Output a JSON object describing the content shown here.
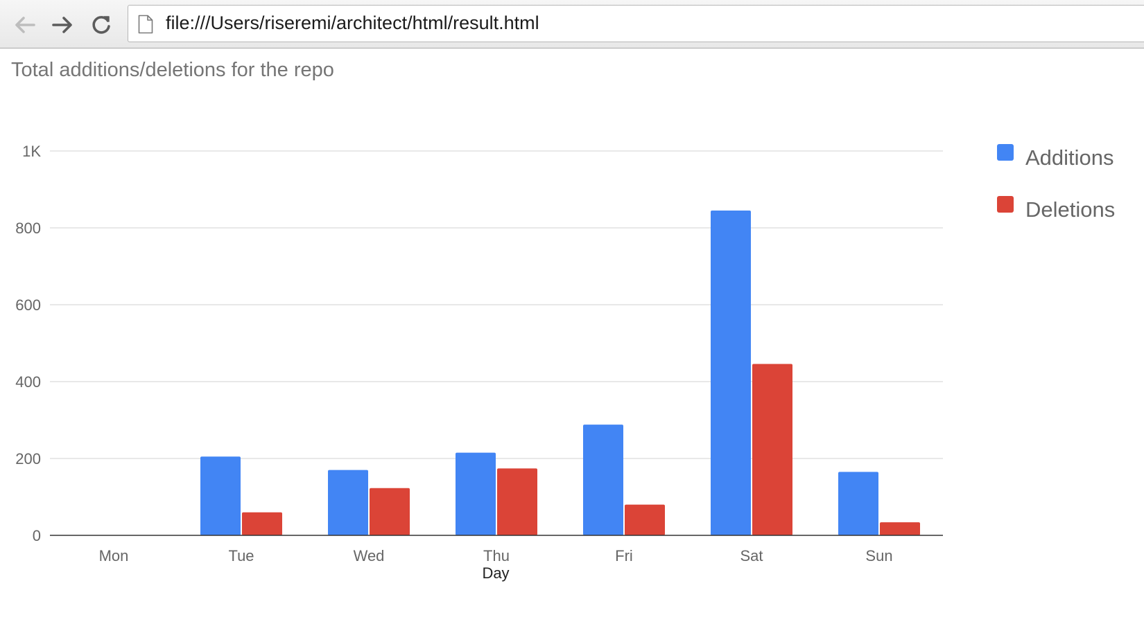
{
  "browser": {
    "url": "file:///Users/riseremi/architect/html/result.html",
    "back_icon": "arrow-left-icon",
    "forward_icon": "arrow-right-icon",
    "reload_icon": "reload-icon",
    "page_icon": "document-icon"
  },
  "chart_data": {
    "type": "bar",
    "title": "Total additions/deletions for the repo",
    "xlabel": "Day",
    "ylabel": "",
    "categories": [
      "Mon",
      "Tue",
      "Wed",
      "Thu",
      "Fri",
      "Sat",
      "Sun"
    ],
    "series": [
      {
        "name": "Additions",
        "color": "#4285f4",
        "values": [
          0,
          205,
          170,
          215,
          288,
          845,
          165
        ]
      },
      {
        "name": "Deletions",
        "color": "#db4437",
        "values": [
          0,
          60,
          123,
          174,
          80,
          446,
          34
        ]
      }
    ],
    "ylim": [
      0,
      1000
    ],
    "yticks": [
      0,
      200,
      400,
      600,
      800,
      1000
    ],
    "ytick_labels": [
      "0",
      "200",
      "400",
      "600",
      "800",
      "1K"
    ],
    "grid": true,
    "legend_position": "right"
  }
}
